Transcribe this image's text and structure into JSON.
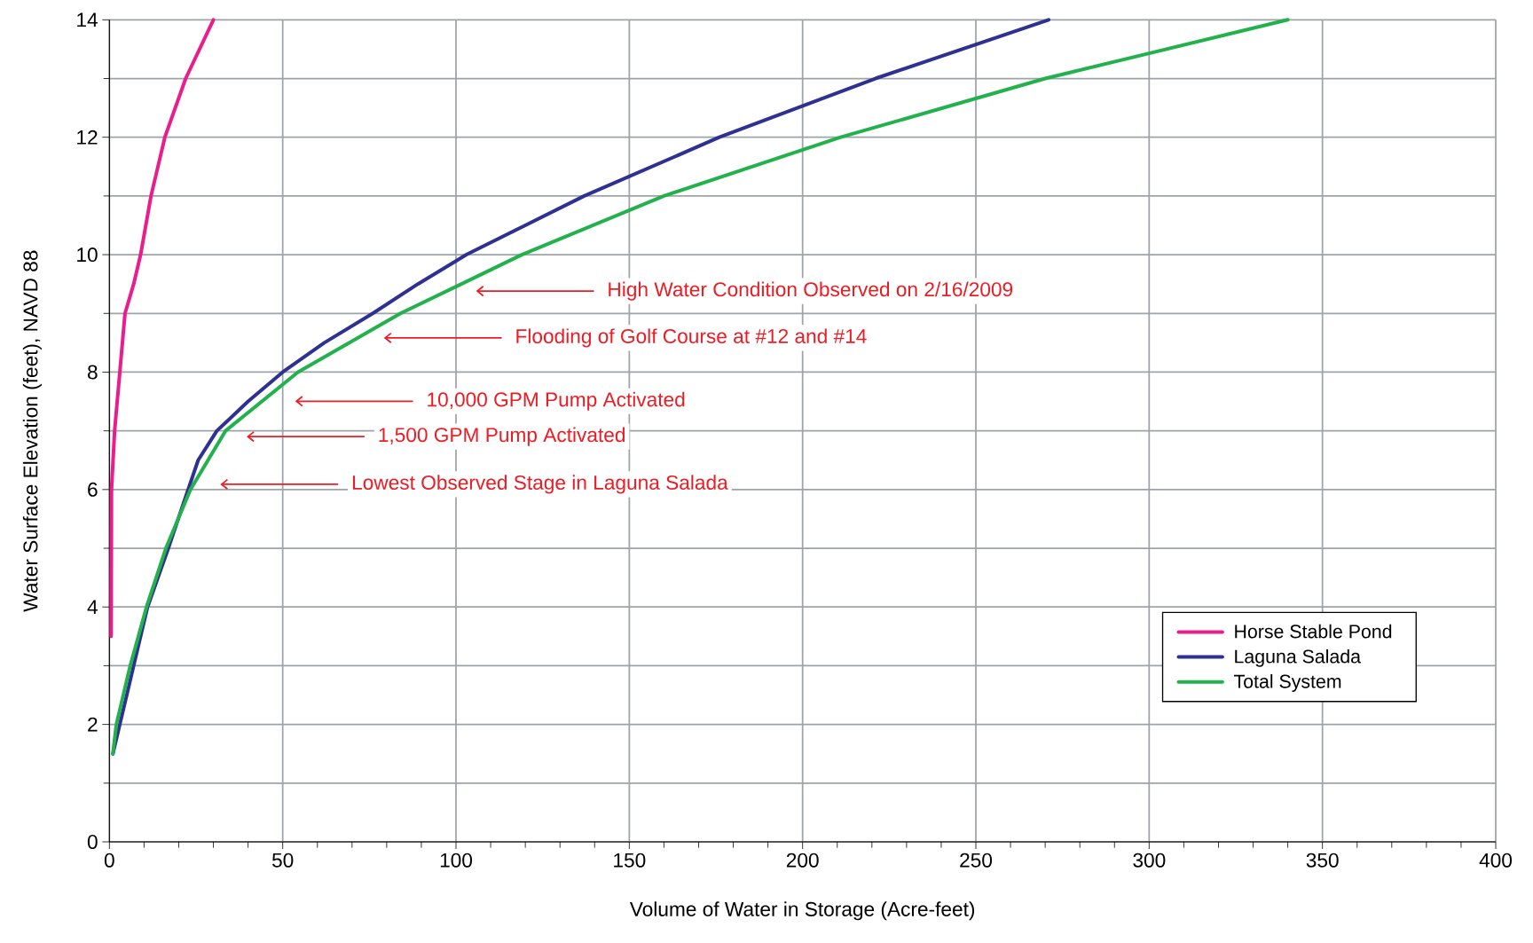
{
  "chart_data": {
    "type": "line",
    "xlabel": "Volume of Water in Storage (Acre-feet)",
    "ylabel": "Water Surface Elevation (feet), NAVD 88",
    "xlim": [
      0,
      400
    ],
    "ylim": [
      0,
      14
    ],
    "xticks": [
      0,
      {
        "value": 10,
        "label": null
      },
      {
        "value": 20,
        "label": null
      },
      {
        "value": 30,
        "label": null
      },
      {
        "value": 40,
        "label": null
      },
      50,
      {
        "value": 60,
        "label": null
      },
      {
        "value": 70,
        "label": null
      },
      {
        "value": 80,
        "label": null
      },
      {
        "value": 90,
        "label": null
      },
      100,
      {
        "value": 110,
        "label": null
      },
      {
        "value": 120,
        "label": null
      },
      {
        "value": 130,
        "label": null
      },
      {
        "value": 140,
        "label": null
      },
      150,
      {
        "value": 160,
        "label": null
      },
      {
        "value": 170,
        "label": null
      },
      {
        "value": 180,
        "label": null
      },
      {
        "value": 190,
        "label": null
      },
      200,
      {
        "value": 210,
        "label": null
      },
      {
        "value": 220,
        "label": null
      },
      {
        "value": 230,
        "label": null
      },
      {
        "value": 240,
        "label": null
      },
      250,
      {
        "value": 260,
        "label": null
      },
      {
        "value": 270,
        "label": null
      },
      {
        "value": 280,
        "label": null
      },
      {
        "value": 290,
        "label": null
      },
      300,
      {
        "value": 310,
        "label": null
      },
      {
        "value": 320,
        "label": null
      },
      {
        "value": 330,
        "label": null
      },
      {
        "value": 340,
        "label": null
      },
      350,
      {
        "value": 360,
        "label": null
      },
      {
        "value": 370,
        "label": null
      },
      {
        "value": 380,
        "label": null
      },
      {
        "value": 390,
        "label": null
      },
      400
    ],
    "yticks": [
      0,
      {
        "value": 1,
        "label": null
      },
      2,
      {
        "value": 3,
        "label": null
      },
      4,
      {
        "value": 5,
        "label": null
      },
      6,
      {
        "value": 7,
        "label": null
      },
      8,
      {
        "value": 9,
        "label": null
      },
      10,
      {
        "value": 11,
        "label": null
      },
      12,
      {
        "value": 13,
        "label": null
      },
      14
    ],
    "grid": true,
    "legend": "right",
    "line_style": "solid",
    "series": [
      {
        "name": "Horse Stable Pond",
        "color": "#e91e8c",
        "x": [
          0.5,
          0.6,
          1.5,
          3,
          4.5,
          7,
          9,
          12,
          16,
          22,
          30
        ],
        "values": [
          3.5,
          6,
          7,
          8,
          9,
          9.5,
          10,
          11,
          12,
          13,
          14
        ]
      },
      {
        "name": "Laguna Salada",
        "color": "#2e3192",
        "x": [
          1,
          3,
          7,
          11,
          17,
          21,
          25.6,
          31,
          40,
          50,
          62,
          76,
          89,
          103,
          120,
          137,
          176,
          221,
          271
        ],
        "values": [
          1.5,
          2,
          3,
          4,
          5,
          5.7,
          6.5,
          7,
          7.5,
          8,
          8.5,
          9,
          9.5,
          10,
          10.5,
          11,
          12,
          13,
          14
        ]
      },
      {
        "name": "Total System",
        "color": "#22b14c",
        "x": [
          1,
          2,
          6,
          10.7,
          16.3,
          23.4,
          33.5,
          54.4,
          84,
          119,
          160,
          211,
          270,
          340
        ],
        "values": [
          1.5,
          2,
          3,
          4,
          5,
          6,
          7,
          8,
          9,
          10,
          11,
          12,
          13,
          14
        ]
      }
    ],
    "annotations": [
      "High Water Condition Observed on 2/16/2009",
      "Flooding of Golf Course at #12 and #14",
      "10,000 GPM Pump Activated",
      "1,500 GPM Pump Activated",
      "Lowest Observed Stage in Laguna Salada"
    ]
  }
}
